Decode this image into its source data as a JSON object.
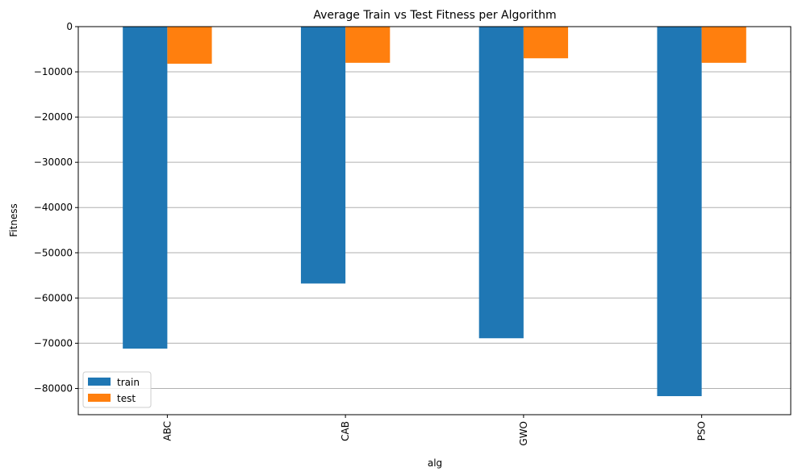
{
  "chart_data": {
    "type": "bar",
    "title": "Average Train vs Test Fitness per Algorithm",
    "xlabel": "alg",
    "ylabel": "Fitness",
    "categories": [
      "ABC",
      "CAB",
      "GWO",
      "PSO"
    ],
    "series": [
      {
        "name": "train",
        "color": "#1f77b4",
        "values": [
          -71200,
          -56800,
          -68900,
          -81700
        ]
      },
      {
        "name": "test",
        "color": "#ff7f0e",
        "values": [
          -8200,
          -8000,
          -7000,
          -8000
        ]
      }
    ],
    "ylim": [
      -85800,
      0
    ],
    "yticks": [
      0,
      -10000,
      -20000,
      -30000,
      -40000,
      -50000,
      -60000,
      -70000,
      -80000
    ],
    "ytick_labels": [
      "0",
      "−10000",
      "−20000",
      "−30000",
      "−40000",
      "−50000",
      "−60000",
      "−70000",
      "−80000"
    ],
    "grid": "horizontal",
    "grid_color": "#b0b0b0",
    "legend_position": "lower-left"
  }
}
